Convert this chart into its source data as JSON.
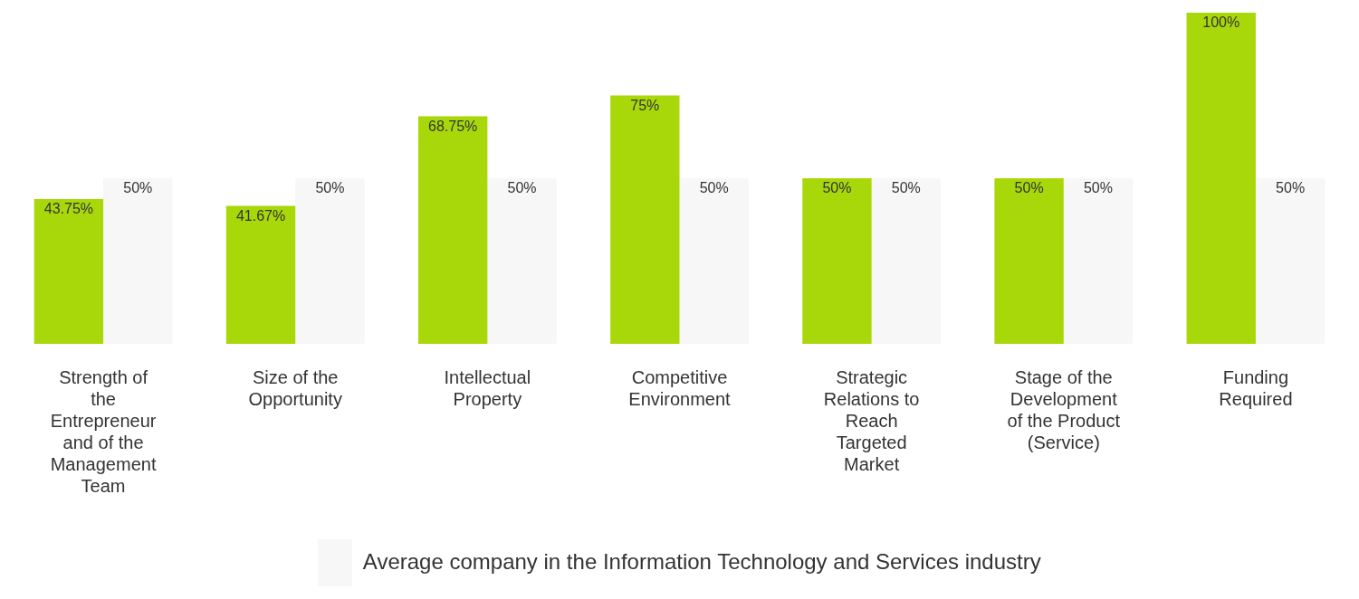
{
  "chart_data": {
    "type": "bar",
    "categories": [
      "Strength of the Entrepreneur and of the Management Team",
      "Size of the Opportunity",
      "Intellectual Property",
      "Competitive Environment",
      "Strategic Relations to Reach Targeted Market",
      "Stage of the Development of the Product (Service)",
      "Funding Required"
    ],
    "series": [
      {
        "color": "#a8d80a",
        "values": [
          43.75,
          41.67,
          68.75,
          75,
          50,
          50,
          100
        ],
        "value_labels": [
          "43.75%",
          "41.67%",
          "68.75%",
          "75%",
          "50%",
          "50%",
          "100%"
        ]
      },
      {
        "name": "Average company in the Information Technology and Services industry",
        "color": "#f7f7f7",
        "values": [
          50,
          50,
          50,
          50,
          50,
          50,
          50
        ],
        "value_labels": [
          "50%",
          "50%",
          "50%",
          "50%",
          "50%",
          "50%",
          "50%"
        ]
      }
    ],
    "grid": false,
    "legend": "bottom"
  }
}
